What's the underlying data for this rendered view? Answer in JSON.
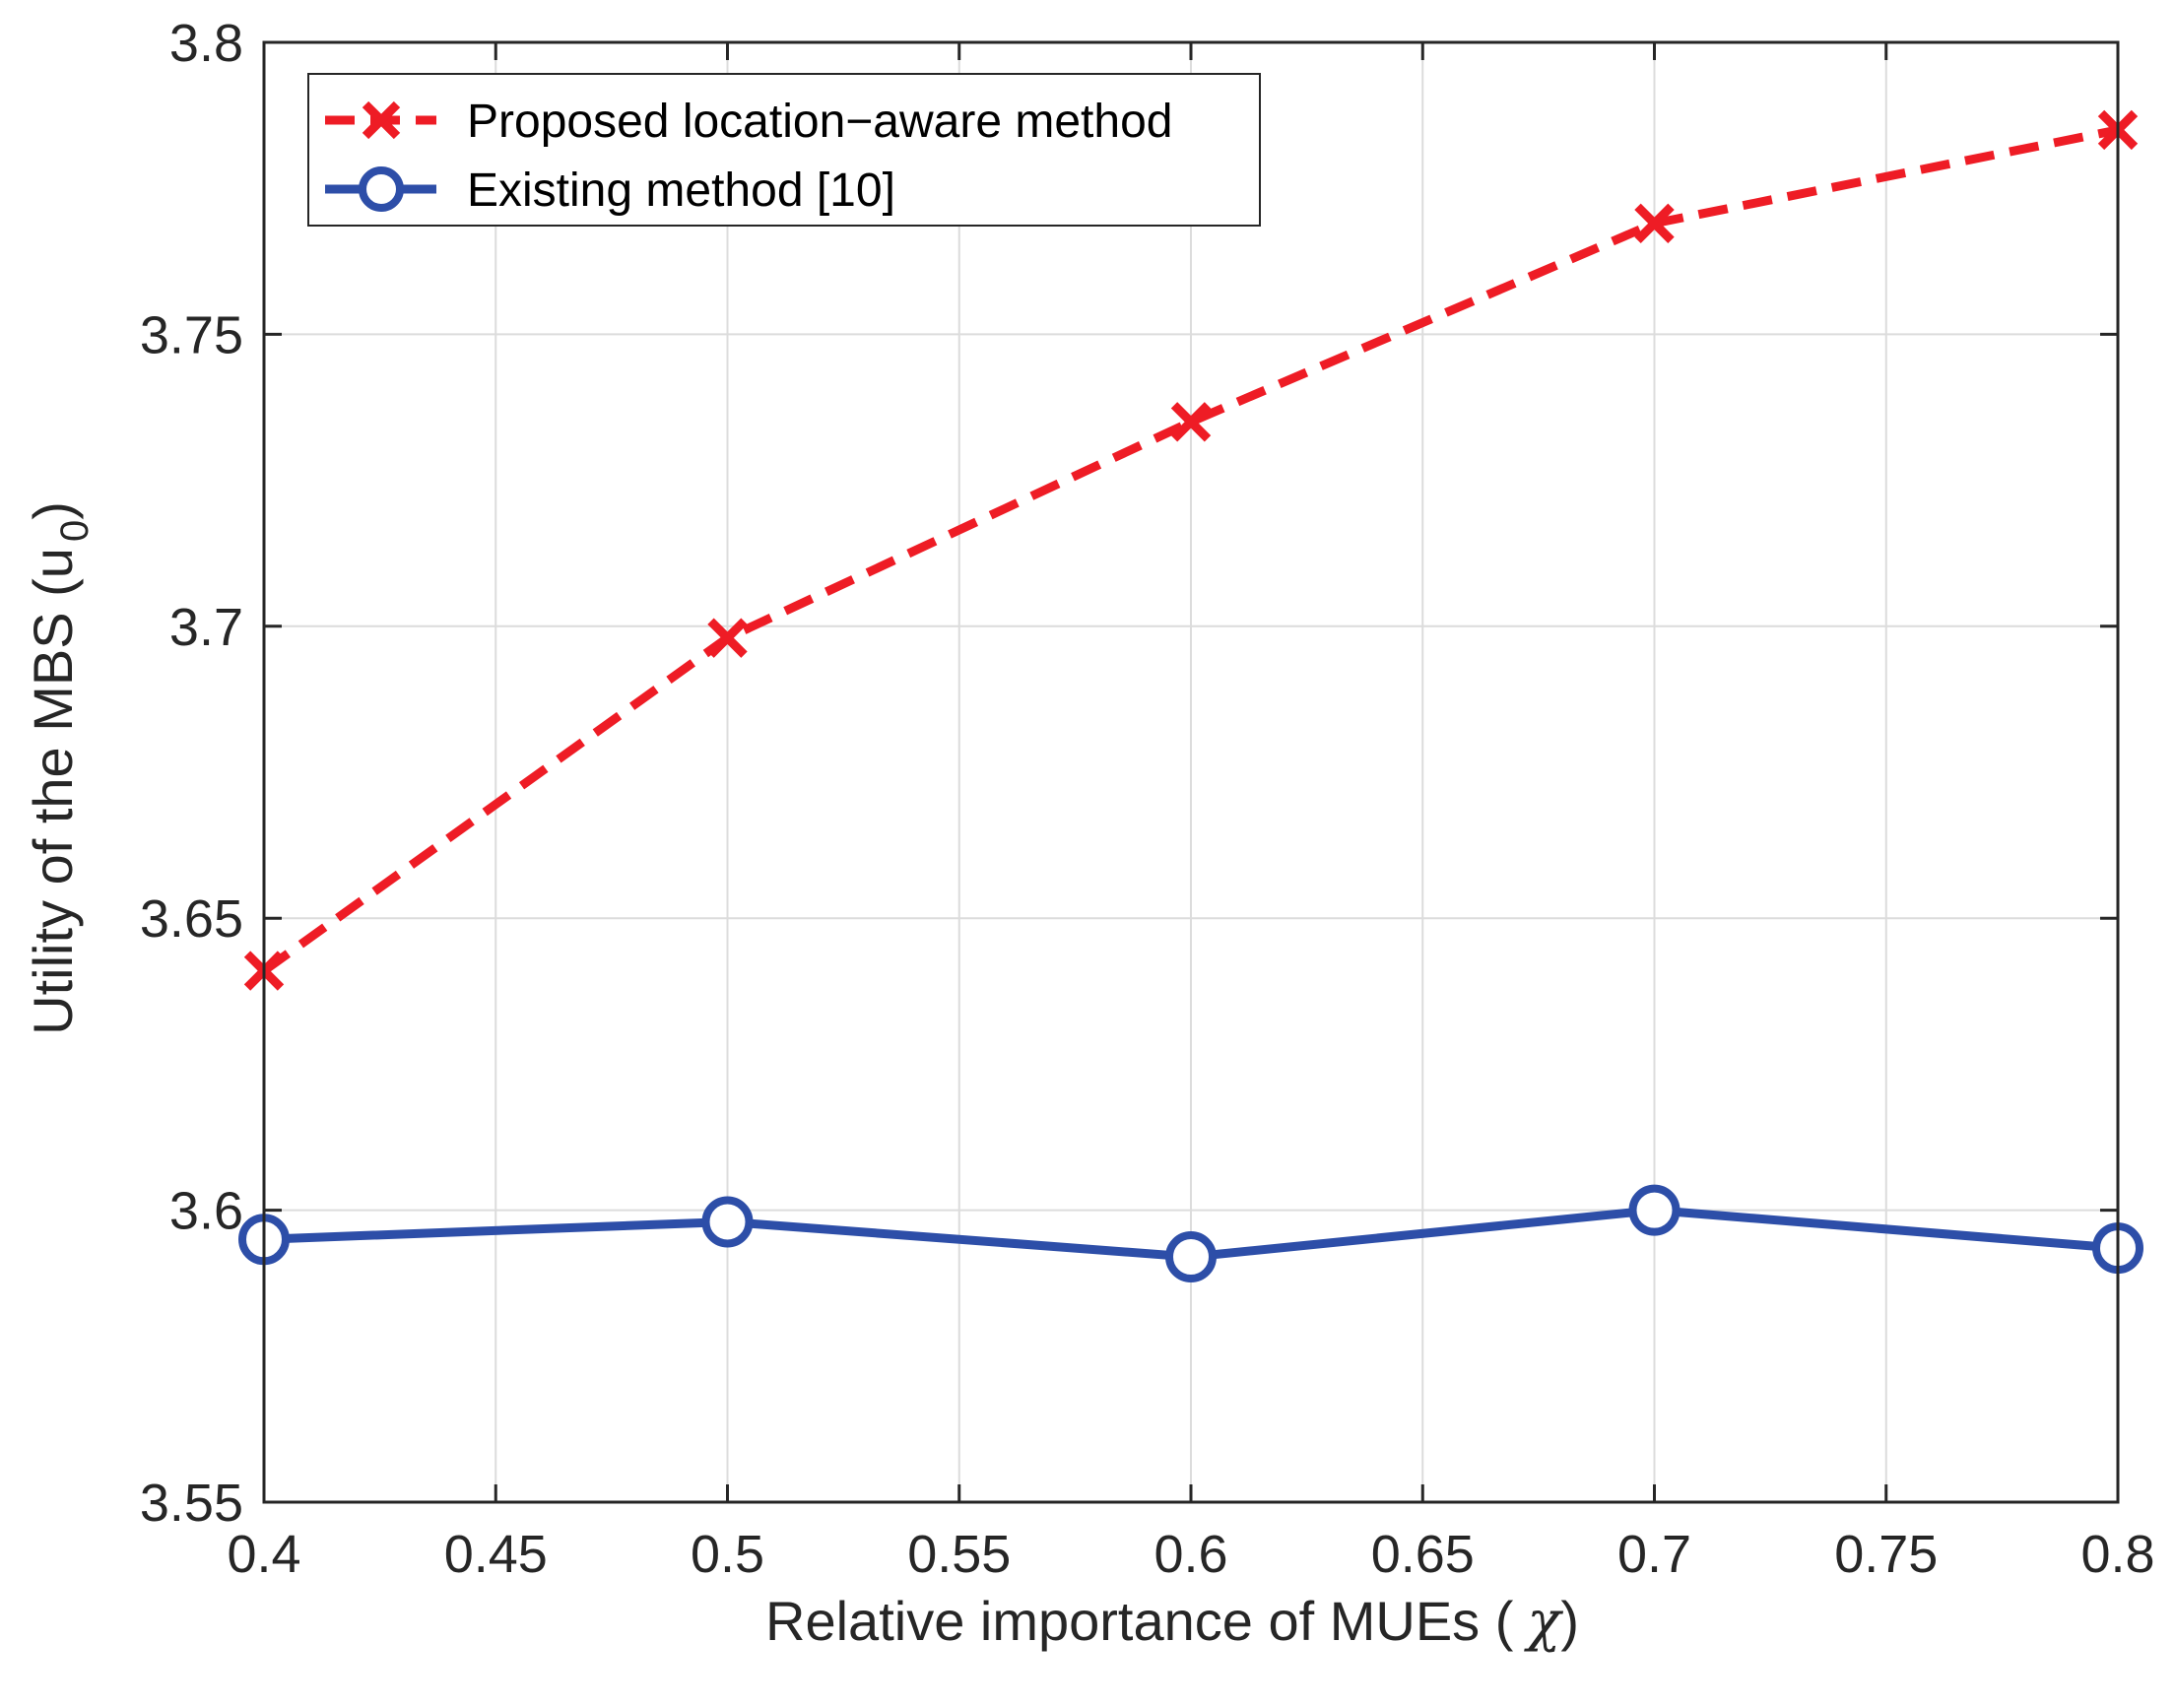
{
  "chart_data": {
    "type": "line",
    "title": "",
    "xlabel_main": "Relative importance of MUEs (",
    "xlabel_symbol": "χ",
    "xlabel_close": ")",
    "ylabel_main": "Utility of the MBS (u",
    "ylabel_sub": "0",
    "ylabel_close": ")",
    "xlim": [
      0.4,
      0.8
    ],
    "ylim": [
      3.55,
      3.8
    ],
    "xticks": [
      0.4,
      0.45,
      0.5,
      0.55,
      0.6,
      0.65,
      0.7,
      0.75,
      0.8
    ],
    "xtick_labels": [
      "0.4",
      "0.45",
      "0.5",
      "0.55",
      "0.6",
      "0.65",
      "0.7",
      "0.75",
      "0.8"
    ],
    "yticks": [
      3.55,
      3.6,
      3.65,
      3.7,
      3.75,
      3.8
    ],
    "ytick_labels": [
      "3.55",
      "3.6",
      "3.65",
      "3.7",
      "3.75",
      "3.8"
    ],
    "grid": true,
    "legend_position": "top-left",
    "x": [
      0.4,
      0.5,
      0.6,
      0.7,
      0.8
    ],
    "series": [
      {
        "name": "Proposed location−aware method",
        "values": [
          3.641,
          3.698,
          3.735,
          3.769,
          3.785
        ],
        "color": "#ee1c25",
        "line_style": "dashed",
        "marker": "x"
      },
      {
        "name": "Existing method [10]",
        "values": [
          3.595,
          3.598,
          3.592,
          3.6,
          3.5935
        ],
        "color": "#2d4ea8",
        "line_style": "solid",
        "marker": "o"
      }
    ]
  }
}
